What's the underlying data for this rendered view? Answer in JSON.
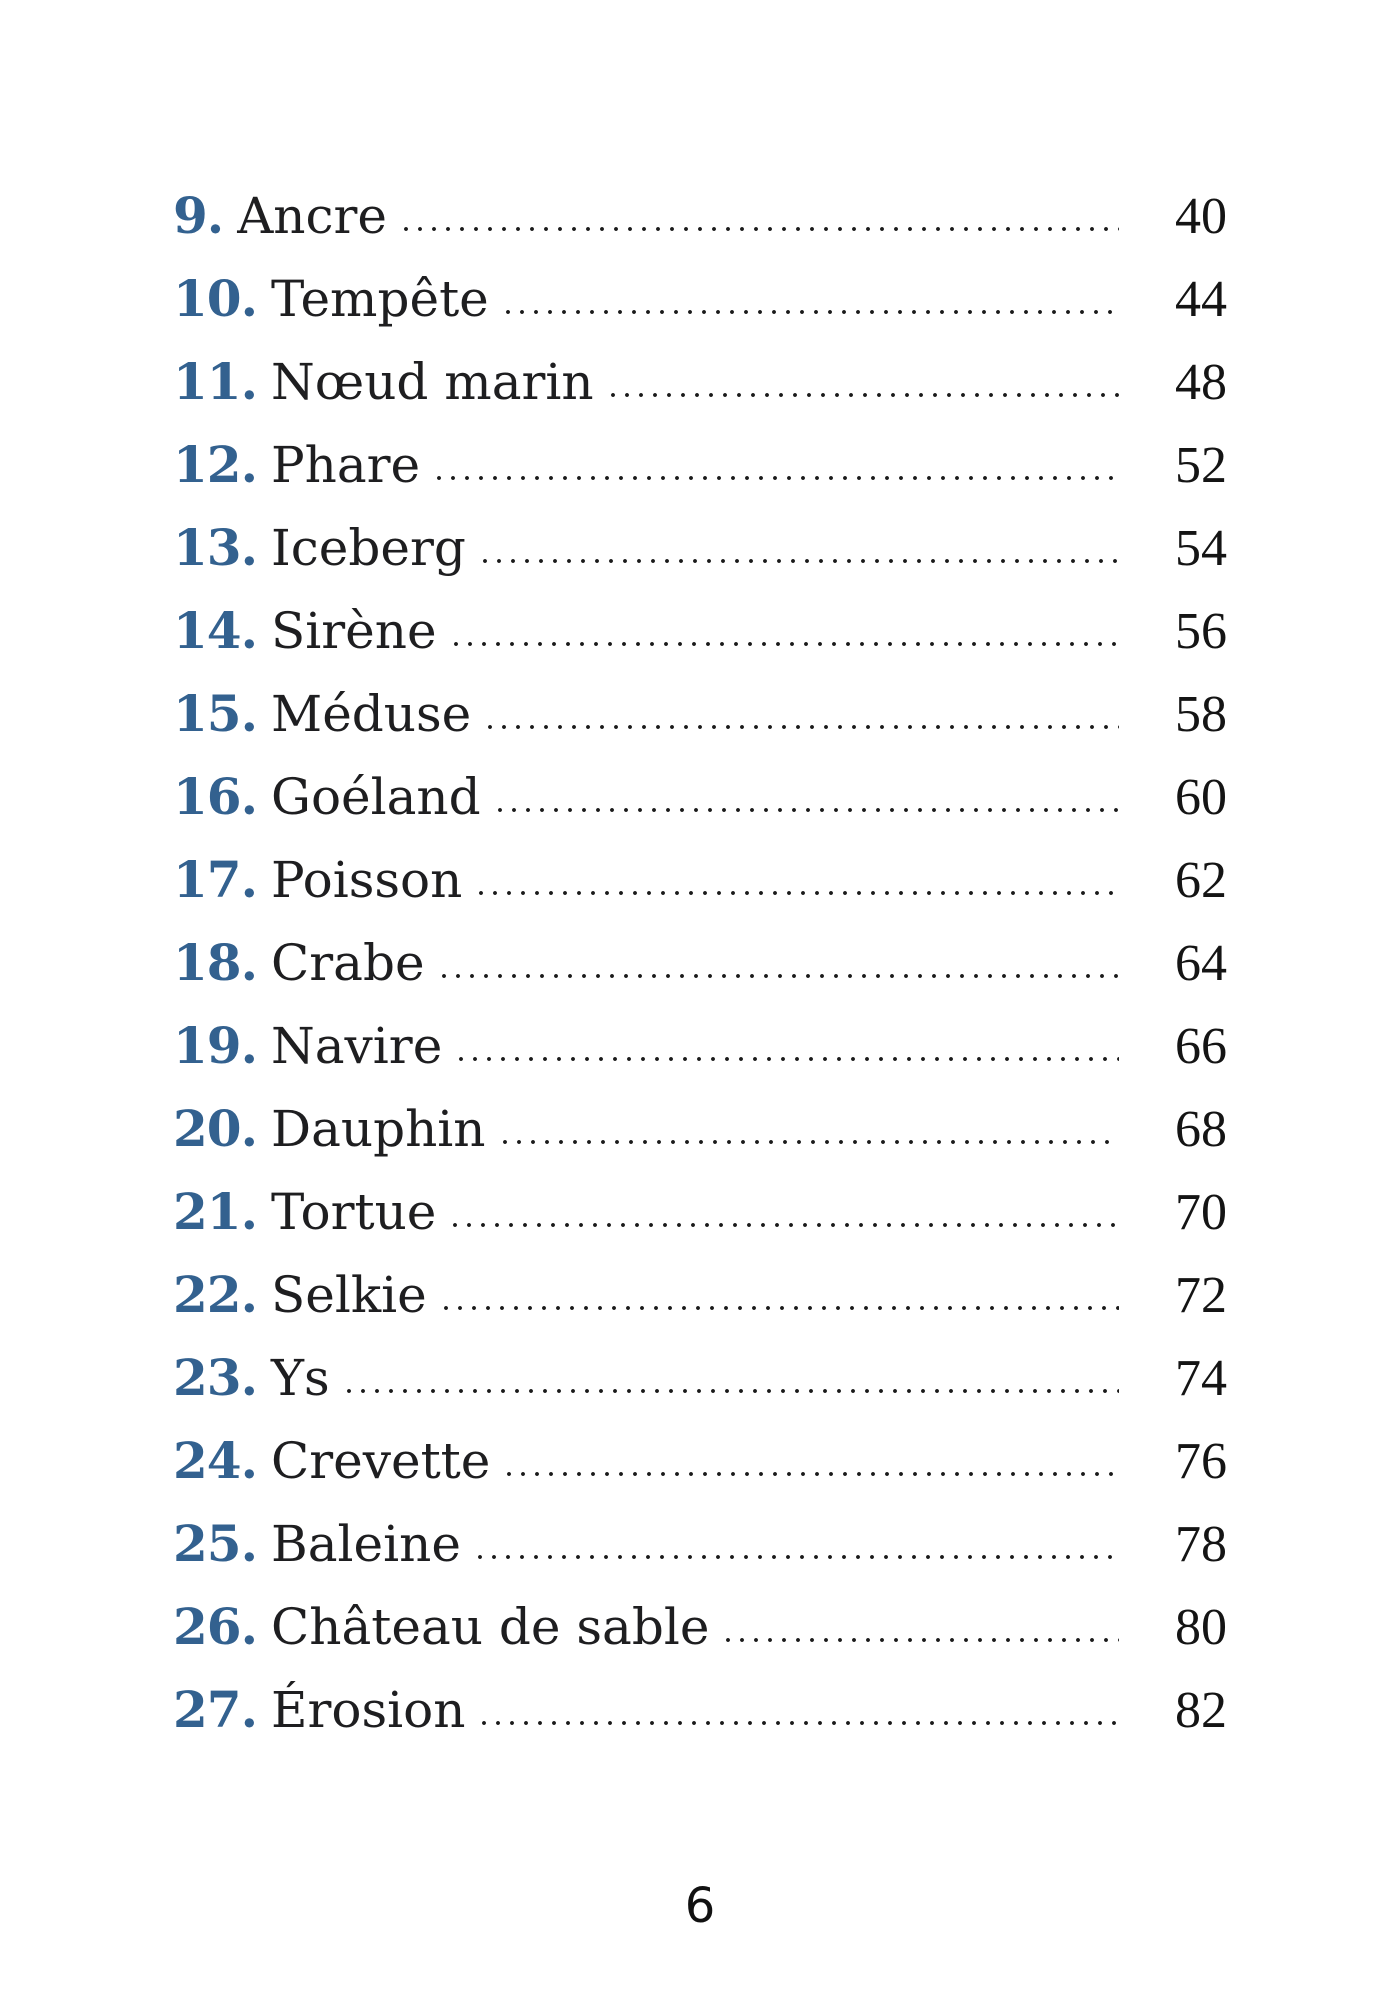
{
  "page": {
    "folio": "6"
  },
  "toc": {
    "entries": [
      {
        "number": "9.",
        "title": "Ancre",
        "page": "40"
      },
      {
        "number": "10.",
        "title": "Tempête",
        "page": "44"
      },
      {
        "number": "11.",
        "title": "Nœud marin",
        "page": "48"
      },
      {
        "number": "12.",
        "title": "Phare",
        "page": "52"
      },
      {
        "number": "13.",
        "title": "Iceberg",
        "page": "54"
      },
      {
        "number": "14.",
        "title": "Sirène",
        "page": "56"
      },
      {
        "number": "15.",
        "title": "Méduse",
        "page": "58"
      },
      {
        "number": "16.",
        "title": "Goéland",
        "page": "60"
      },
      {
        "number": "17.",
        "title": "Poisson",
        "page": "62"
      },
      {
        "number": "18.",
        "title": "Crabe",
        "page": "64"
      },
      {
        "number": "19.",
        "title": "Navire",
        "page": "66"
      },
      {
        "number": "20.",
        "title": "Dauphin",
        "page": "68"
      },
      {
        "number": "21.",
        "title": "Tortue",
        "page": "70"
      },
      {
        "number": "22.",
        "title": "Selkie",
        "page": "72"
      },
      {
        "number": "23.",
        "title": "Ys",
        "page": "74"
      },
      {
        "number": "24.",
        "title": "Crevette",
        "page": "76"
      },
      {
        "number": "25.",
        "title": "Baleine",
        "page": "78"
      },
      {
        "number": "26.",
        "title": "Château de sable",
        "page": "80"
      },
      {
        "number": "27.",
        "title": "Érosion",
        "page": "82"
      }
    ]
  }
}
